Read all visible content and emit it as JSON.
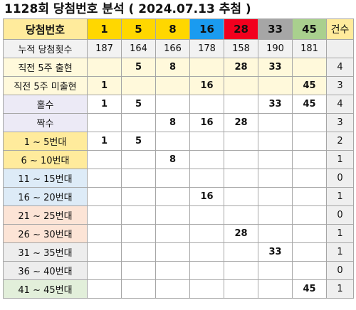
{
  "title": "1128회 당첨번호 분석 ( 2024.07.13 추첨 )",
  "header": {
    "label": "당첨번호",
    "numbers": [
      "1",
      "5",
      "8",
      "16",
      "28",
      "33",
      "45"
    ],
    "count_label": "건수"
  },
  "cumulative": {
    "label": "누적 당첨횟수",
    "values": [
      "187",
      "164",
      "166",
      "178",
      "158",
      "190",
      "181"
    ]
  },
  "rows": [
    {
      "label": "직전 5주 출현",
      "cells": [
        "",
        "5",
        "8",
        "",
        "28",
        "33",
        ""
      ],
      "count": "4"
    },
    {
      "label": "직전 5주 미출현",
      "cells": [
        "1",
        "",
        "",
        "16",
        "",
        "",
        "45"
      ],
      "count": "3"
    },
    {
      "label": "홀수",
      "cells": [
        "1",
        "5",
        "",
        "",
        "",
        "33",
        "45"
      ],
      "count": "4"
    },
    {
      "label": "짝수",
      "cells": [
        "",
        "",
        "8",
        "16",
        "28",
        "",
        ""
      ],
      "count": "3"
    },
    {
      "label": "1 ~ 5번대",
      "cells": [
        "1",
        "5",
        "",
        "",
        "",
        "",
        ""
      ],
      "count": "2"
    },
    {
      "label": "6 ~ 10번대",
      "cells": [
        "",
        "",
        "8",
        "",
        "",
        "",
        ""
      ],
      "count": "1"
    },
    {
      "label": "11 ~ 15번대",
      "cells": [
        "",
        "",
        "",
        "",
        "",
        "",
        ""
      ],
      "count": "0"
    },
    {
      "label": "16 ~ 20번대",
      "cells": [
        "",
        "",
        "",
        "16",
        "",
        "",
        ""
      ],
      "count": "1"
    },
    {
      "label": "21 ~ 25번대",
      "cells": [
        "",
        "",
        "",
        "",
        "",
        "",
        ""
      ],
      "count": "0"
    },
    {
      "label": "26 ~ 30번대",
      "cells": [
        "",
        "",
        "",
        "",
        "28",
        "",
        ""
      ],
      "count": "1"
    },
    {
      "label": "31 ~ 35번대",
      "cells": [
        "",
        "",
        "",
        "",
        "",
        "33",
        ""
      ],
      "count": "1"
    },
    {
      "label": "36 ~ 40번대",
      "cells": [
        "",
        "",
        "",
        "",
        "",
        "",
        ""
      ],
      "count": "0"
    },
    {
      "label": "41 ~ 45번대",
      "cells": [
        "",
        "",
        "",
        "",
        "",
        "",
        "45"
      ],
      "count": "1"
    }
  ],
  "colors": {
    "ball_yellow": "#ffd700",
    "ball_blue": "#1a9bf0",
    "ball_red": "#f2001e",
    "ball_gray": "#a6a6a6",
    "ball_green": "#a9d08e",
    "appeared_text": "#ff1a1a"
  }
}
